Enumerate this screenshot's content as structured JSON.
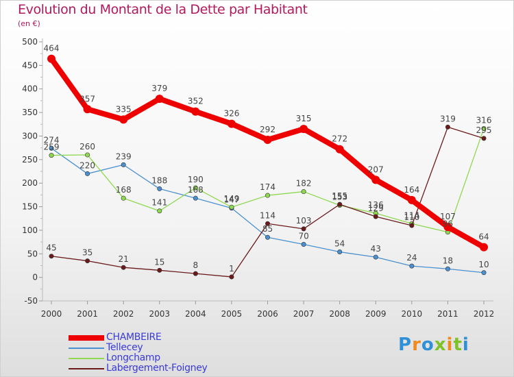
{
  "title": "Evolution du Montant de la Dette par Habitant",
  "subtitle": "(en €)",
  "logo": {
    "text": "Proxiti",
    "letters": [
      {
        "ch": "P",
        "color": "#2f8fd8"
      },
      {
        "ch": "r",
        "color": "#f08a1c"
      },
      {
        "ch": "o",
        "color": "#2f8fd8"
      },
      {
        "ch": "x",
        "color": "#7ec22a"
      },
      {
        "ch": "i",
        "color": "#f08a1c"
      },
      {
        "ch": "t",
        "color": "#7ec22a"
      },
      {
        "ch": "i",
        "color": "#2f8fd8"
      }
    ]
  },
  "chart_data": {
    "type": "line",
    "x": [
      "2000",
      "2001",
      "2002",
      "2003",
      "2004",
      "2005",
      "2006",
      "2007",
      "2008",
      "2009",
      "2010",
      "2011",
      "2012"
    ],
    "ylim": [
      -50,
      500
    ],
    "y_ticks": [
      -50,
      0,
      50,
      100,
      150,
      200,
      250,
      300,
      350,
      400,
      450,
      500
    ],
    "grid": false,
    "legend_position": "bottom-left",
    "series": [
      {
        "name": "CHAMBEIRE",
        "color": "#ee0000",
        "values": [
          464,
          357,
          335,
          379,
          352,
          326,
          292,
          315,
          272,
          207,
          164,
          107,
          64
        ],
        "labels": [
          "464",
          "357",
          "335",
          "379",
          "352",
          "326",
          "292",
          "315",
          "272",
          "207",
          "164",
          "107",
          "64"
        ]
      },
      {
        "name": "Tellecey",
        "color": "#4a90d0",
        "values": [
          274,
          220,
          239,
          188,
          168,
          147,
          85,
          70,
          54,
          43,
          24,
          18,
          10
        ],
        "labels": [
          "274",
          "220",
          "239",
          "188",
          "168",
          "147",
          "85",
          "70",
          "54",
          "43",
          "24",
          "18",
          "10"
        ]
      },
      {
        "name": "Longchamp",
        "color": "#8fd850",
        "values": [
          259,
          260,
          168,
          141,
          190,
          149,
          174,
          182,
          153,
          136,
          114,
          96,
          316
        ],
        "labels": [
          "259",
          "260",
          "168",
          "141",
          "190",
          "149",
          "174",
          "182",
          "153",
          "136",
          "114",
          "96",
          "316"
        ]
      },
      {
        "name": "Labergement-Foigney",
        "color": "#6a1a1a",
        "values": [
          45,
          35,
          21,
          15,
          8,
          1,
          114,
          103,
          155,
          129,
          110,
          319,
          295
        ],
        "labels": [
          "45",
          "35",
          "21",
          "15",
          "8",
          "1",
          "114",
          "103",
          "155",
          "129",
          "110",
          "319",
          "295"
        ]
      }
    ]
  }
}
